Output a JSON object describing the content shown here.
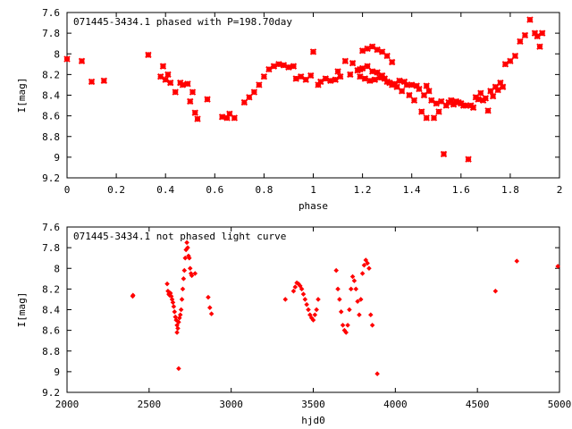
{
  "chart_data": [
    {
      "type": "scatter",
      "title": "071445-3434.1 phased with P=198.70day",
      "xlabel": "phase",
      "ylabel": "I[mag]",
      "xlim": [
        0,
        2
      ],
      "ylim": [
        9.2,
        7.6
      ],
      "y_inverted": true,
      "xticks": [
        "0",
        "0.2",
        "0.4",
        "0.6",
        "0.8",
        "1",
        "1.2",
        "1.4",
        "1.6",
        "1.8",
        "2"
      ],
      "yticks": [
        "7.6",
        "7.8",
        "8",
        "8.2",
        "8.4",
        "8.6",
        "8.8",
        "9",
        "9.2"
      ],
      "marker": "cross",
      "color": "#ff0000",
      "x": [
        0.0,
        0.06,
        0.1,
        0.15,
        0.33,
        0.38,
        0.39,
        0.4,
        0.41,
        0.42,
        0.44,
        0.46,
        0.47,
        0.49,
        0.5,
        0.51,
        0.52,
        0.53,
        0.57,
        0.63,
        0.65,
        0.66,
        0.68,
        0.72,
        0.74,
        0.76,
        0.78,
        0.8,
        0.82,
        0.84,
        0.86,
        0.88,
        0.9,
        0.92,
        0.93,
        0.95,
        0.97,
        0.99,
        1.0,
        1.02,
        1.03,
        1.05,
        1.07,
        1.09,
        1.1,
        1.11,
        1.13,
        1.15,
        1.16,
        1.18,
        1.19,
        1.2,
        1.22,
        1.24,
        1.26,
        1.28,
        1.3,
        1.32,
        1.33,
        1.35,
        1.37,
        1.38,
        1.4,
        1.42,
        1.43,
        1.45,
        1.46,
        1.47,
        1.48,
        1.5,
        1.52,
        1.53,
        1.55,
        1.57,
        1.59,
        1.61,
        1.63,
        1.64,
        1.66,
        1.67,
        1.68,
        1.69,
        1.7,
        1.72,
        1.74,
        1.76,
        1.78,
        1.8,
        1.82,
        1.84,
        1.86,
        1.88,
        1.9,
        1.91,
        1.92,
        1.93,
        1.19,
        1.21,
        1.23,
        1.25,
        1.27,
        1.29,
        1.31,
        1.34,
        1.36,
        1.39,
        1.41,
        1.44,
        1.2,
        1.22,
        1.24,
        1.26,
        1.28,
        1.3,
        1.32,
        1.46,
        1.49,
        1.51,
        1.54,
        1.56,
        1.58,
        1.6,
        1.62,
        1.65,
        1.71,
        1.73,
        1.75,
        1.77
      ],
      "y": [
        8.05,
        8.07,
        8.27,
        8.26,
        8.01,
        8.22,
        8.12,
        8.25,
        8.2,
        8.28,
        8.37,
        8.28,
        8.3,
        8.29,
        8.46,
        8.37,
        8.57,
        8.63,
        8.44,
        8.61,
        8.62,
        8.58,
        8.62,
        8.47,
        8.42,
        8.37,
        8.3,
        8.22,
        8.15,
        8.12,
        8.1,
        8.11,
        8.13,
        8.12,
        8.24,
        8.22,
        8.25,
        8.21,
        7.98,
        8.3,
        8.27,
        8.24,
        8.26,
        8.25,
        8.17,
        8.22,
        8.07,
        8.2,
        8.09,
        8.16,
        8.15,
        8.14,
        8.12,
        8.17,
        8.18,
        8.21,
        8.27,
        8.3,
        8.29,
        8.26,
        8.27,
        8.3,
        8.3,
        8.31,
        8.34,
        8.4,
        8.31,
        8.36,
        8.45,
        8.48,
        8.46,
        8.97,
        8.47,
        8.49,
        8.47,
        8.5,
        9.02,
        8.5,
        8.42,
        8.44,
        8.38,
        8.45,
        8.43,
        8.36,
        8.32,
        8.28,
        8.1,
        8.07,
        8.02,
        7.88,
        7.82,
        7.67,
        7.8,
        7.83,
        7.93,
        7.8,
        8.22,
        8.24,
        8.26,
        8.25,
        8.23,
        8.24,
        8.28,
        8.32,
        8.36,
        8.4,
        8.45,
        8.56,
        7.97,
        7.95,
        7.93,
        7.96,
        7.98,
        8.02,
        8.08,
        8.62,
        8.62,
        8.56,
        8.5,
        8.45,
        8.46,
        8.48,
        8.5,
        8.52,
        8.55,
        8.41,
        8.35,
        8.32
      ]
    },
    {
      "type": "scatter",
      "title": "071445-3434.1 not phased light curve",
      "xlabel": "hjd0",
      "ylabel": "I[mag]",
      "xlim": [
        2000,
        5000
      ],
      "ylim": [
        9.2,
        7.6
      ],
      "y_inverted": true,
      "xticks": [
        "2000",
        "2500",
        "3000",
        "3500",
        "4000",
        "4500",
        "5000"
      ],
      "yticks": [
        "7.6",
        "7.8",
        "8",
        "8.2",
        "8.4",
        "8.6",
        "8.8",
        "9",
        "9.2"
      ],
      "marker": "diamond",
      "color": "#ff0000",
      "x": [
        2400,
        2402,
        2610,
        2615,
        2620,
        2625,
        2630,
        2635,
        2640,
        2645,
        2650,
        2655,
        2660,
        2665,
        2670,
        2675,
        2680,
        2685,
        2690,
        2695,
        2700,
        2705,
        2710,
        2715,
        2720,
        2725,
        2730,
        2735,
        2740,
        2745,
        2750,
        2755,
        2760,
        2780,
        2680,
        2670,
        2860,
        2870,
        2880,
        3330,
        3380,
        3390,
        3400,
        3410,
        3420,
        3430,
        3440,
        3450,
        3460,
        3470,
        3480,
        3490,
        3500,
        3510,
        3520,
        3530,
        3640,
        3650,
        3660,
        3670,
        3680,
        3690,
        3700,
        3710,
        3720,
        3730,
        3740,
        3750,
        3760,
        3770,
        3780,
        3790,
        3800,
        3810,
        3820,
        3830,
        3840,
        3850,
        3860,
        3890,
        4610,
        4740,
        4990
      ],
      "y": [
        8.27,
        8.26,
        8.15,
        8.22,
        8.25,
        8.26,
        8.24,
        8.27,
        8.3,
        8.33,
        8.37,
        8.42,
        8.47,
        8.5,
        8.55,
        8.58,
        8.52,
        8.48,
        8.45,
        8.4,
        8.3,
        8.2,
        8.1,
        8.02,
        7.9,
        7.82,
        7.75,
        7.8,
        7.88,
        7.9,
        8.0,
        8.05,
        8.07,
        8.05,
        8.97,
        8.62,
        8.28,
        8.38,
        8.44,
        8.3,
        8.22,
        8.18,
        8.14,
        8.15,
        8.17,
        8.2,
        8.25,
        8.3,
        8.35,
        8.4,
        8.45,
        8.48,
        8.5,
        8.45,
        8.4,
        8.3,
        8.02,
        8.2,
        8.3,
        8.42,
        8.55,
        8.6,
        8.62,
        8.55,
        8.4,
        8.2,
        8.08,
        8.12,
        8.2,
        8.32,
        8.45,
        8.3,
        8.05,
        7.97,
        7.92,
        7.95,
        8.0,
        8.45,
        8.55,
        9.02,
        8.22,
        7.93,
        7.98
      ]
    }
  ]
}
